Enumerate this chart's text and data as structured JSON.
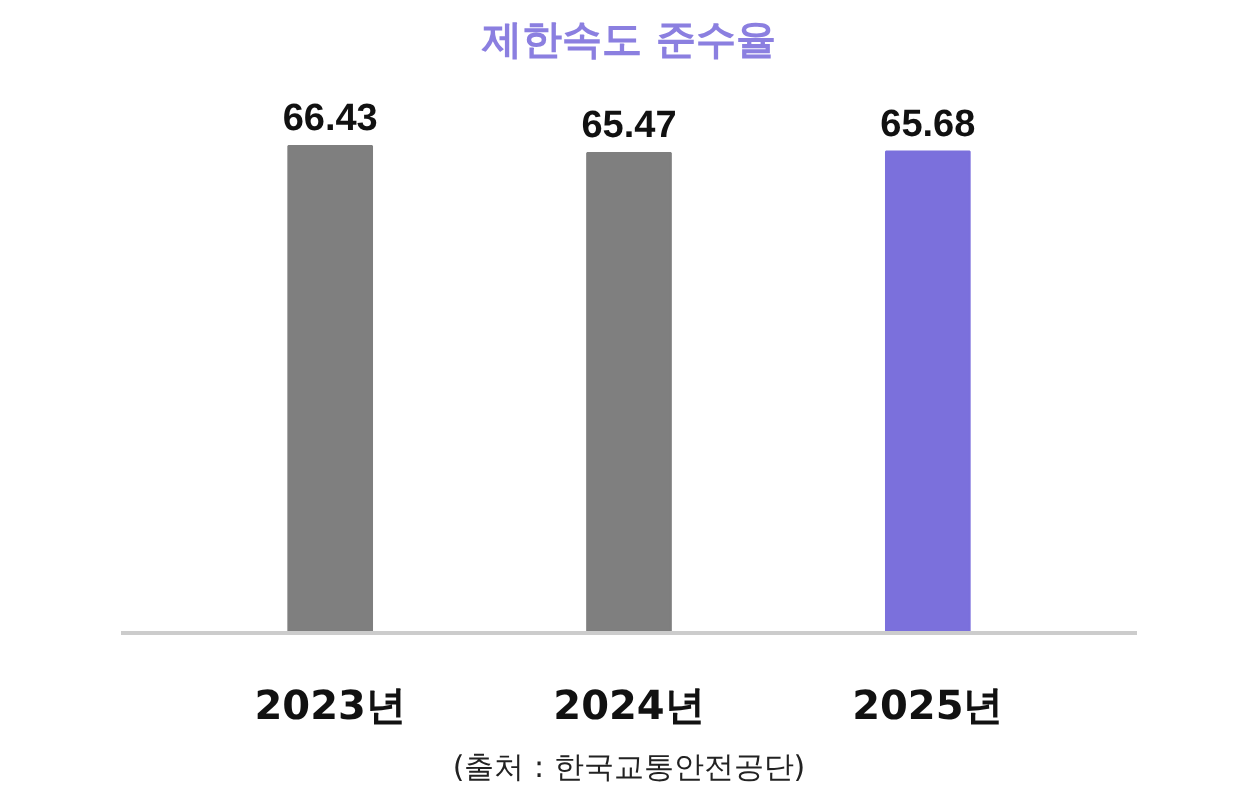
{
  "chart_data": {
    "type": "bar",
    "title": "제한속도 준수율",
    "categories": [
      "2023년",
      "2024년",
      "2025년"
    ],
    "values": [
      66.43,
      65.47,
      65.68
    ],
    "colors": [
      "#7f7f7f",
      "#7f7f7f",
      "#7b70dc"
    ],
    "data_labels": true,
    "grid": false,
    "annotations": [
      "(출처 : 한국교통안전공단)"
    ]
  }
}
